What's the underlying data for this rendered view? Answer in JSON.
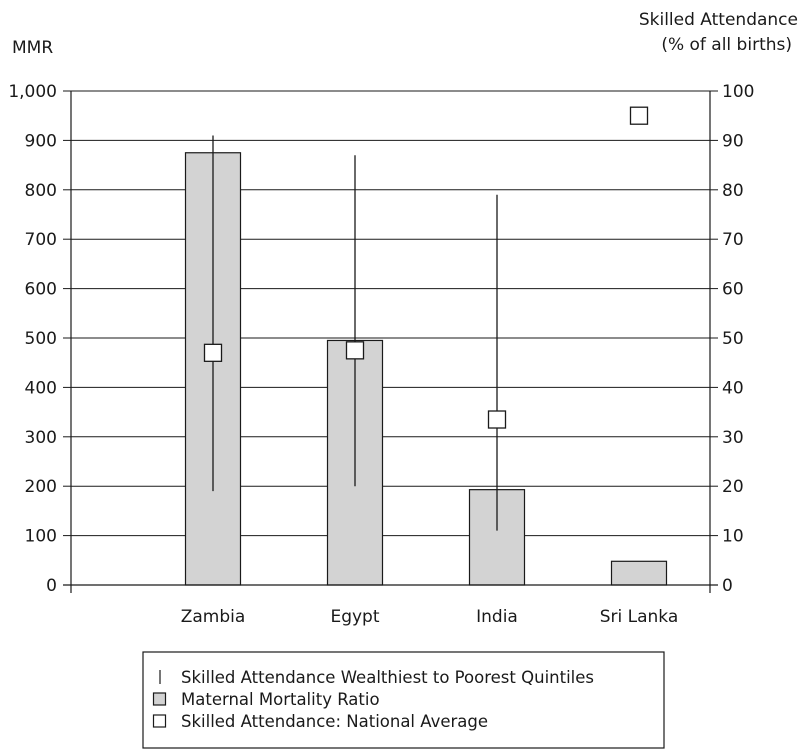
{
  "chart_data": {
    "type": "bar",
    "categories": [
      "Zambia",
      "Egypt",
      "India",
      "Sri Lanka"
    ],
    "left_axis": {
      "label": "MMR",
      "ylim": [
        0,
        1000
      ],
      "ticks": [
        "0",
        "100",
        "200",
        "300",
        "400",
        "500",
        "600",
        "700",
        "800",
        "900",
        "1,000"
      ]
    },
    "right_axis": {
      "label_line1": "Skilled Attendance",
      "label_line2": "(% of all births)",
      "ylim": [
        0,
        100
      ],
      "ticks": [
        "0",
        "10",
        "20",
        "30",
        "40",
        "50",
        "60",
        "70",
        "80",
        "90",
        "100"
      ]
    },
    "grid": true,
    "series": [
      {
        "name": "Maternal Mortality Ratio",
        "kind": "bar",
        "axis": "left",
        "color": "#d3d3d3",
        "values": [
          875,
          495,
          193,
          48
        ]
      },
      {
        "name": "Skilled Attendance Wealthiest to Poorest Quintiles",
        "kind": "range",
        "axis": "right",
        "low": [
          19,
          20,
          11,
          null
        ],
        "high": [
          91,
          87,
          79,
          null
        ]
      },
      {
        "name": "Skilled Attendance: National Average",
        "kind": "marker",
        "axis": "right",
        "values": [
          47,
          47.5,
          33.5,
          95
        ]
      }
    ],
    "legend": {
      "placement": "bottom-center",
      "items": [
        {
          "symbol": "range-line",
          "label": "Skilled Attendance Wealthiest to Poorest Quintiles"
        },
        {
          "symbol": "gray-box",
          "label": "Maternal Mortality Ratio"
        },
        {
          "symbol": "open-square",
          "label": "Skilled Attendance: National Average"
        }
      ]
    }
  }
}
